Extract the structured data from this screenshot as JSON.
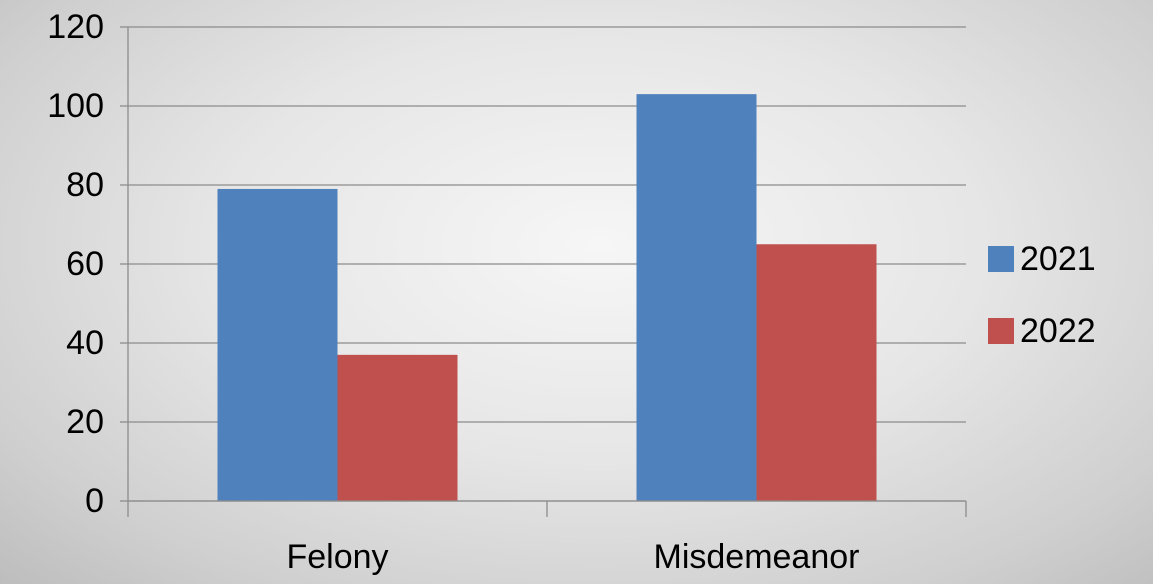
{
  "chart_data": {
    "type": "bar",
    "title": "",
    "xlabel": "",
    "ylabel": "",
    "categories": [
      "Felony",
      "Misdemeanor"
    ],
    "series": [
      {
        "name": "2021",
        "values": [
          79,
          103
        ],
        "color": "#4f81bd"
      },
      {
        "name": "2022",
        "values": [
          37,
          65
        ],
        "color": "#c0504d"
      }
    ],
    "ylim": [
      0,
      120
    ],
    "yticks": [
      0,
      20,
      40,
      60,
      80,
      100,
      120
    ],
    "grid": true,
    "legend_position": "right"
  }
}
